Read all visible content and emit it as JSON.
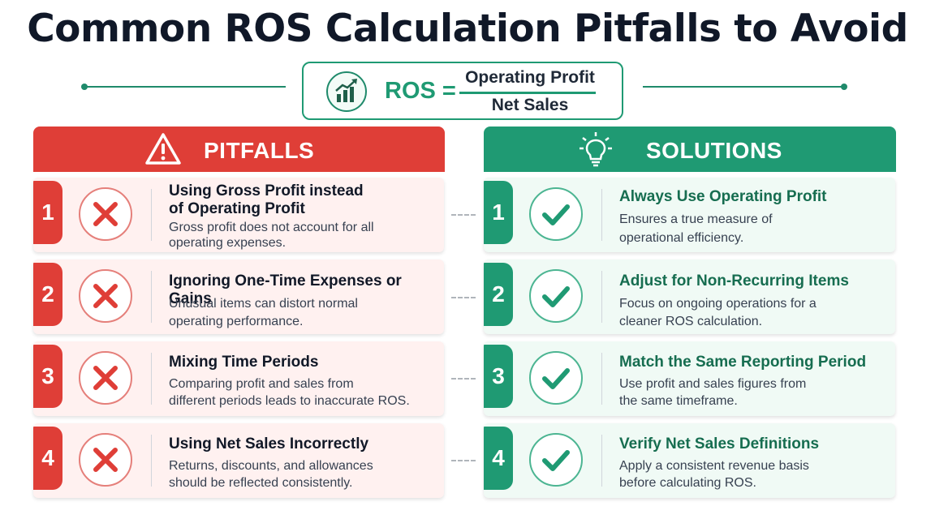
{
  "title": "Common ROS Calculation Pitfalls to Avoid",
  "formula": {
    "lhs": "ROS =",
    "numerator": "Operating Profit",
    "denominator": "Net Sales",
    "icon": "growth-chart-icon"
  },
  "colors": {
    "pitfall_red": "#df3e37",
    "solution_green": "#1f9a73",
    "title_dark": "#101828"
  },
  "pitfalls": {
    "header": "PITFALLS",
    "icon": "warning-icon",
    "items": [
      {
        "number": "1",
        "title_line1": "Using Gross Profit instead",
        "title_line2": "of Operating Profit",
        "desc_line1": "Gross profit does not account for all",
        "desc_line2": "operating expenses."
      },
      {
        "number": "2",
        "title_line1": "Ignoring One-Time Expenses or Gains",
        "title_line2": "",
        "desc_line1": "Unusual items can distort normal",
        "desc_line2": "operating performance."
      },
      {
        "number": "3",
        "title_line1": "Mixing Time Periods",
        "title_line2": "",
        "desc_line1": "Comparing profit and sales from",
        "desc_line2": "different periods leads to inaccurate ROS."
      },
      {
        "number": "4",
        "title_line1": "Using Net Sales Incorrectly",
        "title_line2": "",
        "desc_line1": "Returns, discounts, and allowances",
        "desc_line2": "should be reflected consistently."
      }
    ]
  },
  "solutions": {
    "header": "SOLUTIONS",
    "icon": "lightbulb-icon",
    "items": [
      {
        "number": "1",
        "title": "Always Use Operating Profit",
        "desc_line1": "Ensures a true measure of",
        "desc_line2": "operational efficiency."
      },
      {
        "number": "2",
        "title": "Adjust for Non-Recurring Items",
        "desc_line1": "Focus on ongoing operations for a",
        "desc_line2": "cleaner ROS calculation."
      },
      {
        "number": "3",
        "title": "Match the Same Reporting Period",
        "desc_line1": "Use profit and sales figures from",
        "desc_line2": "the same timeframe."
      },
      {
        "number": "4",
        "title": "Verify Net Sales Definitions",
        "desc_line1": "Apply a consistent revenue basis",
        "desc_line2": "before calculating ROS."
      }
    ]
  }
}
